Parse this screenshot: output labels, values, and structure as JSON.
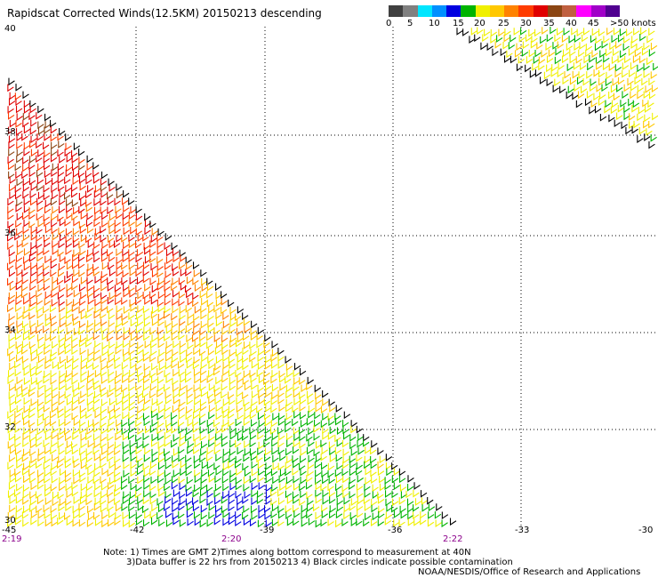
{
  "title": "Rapidscat Corrected Winds(12.5KM) 20150213 descending",
  "colorbar": {
    "colors": [
      "#404040",
      "#808080",
      "#00e6ff",
      "#0090ff",
      "#0000e0",
      "#00b400",
      "#f0f000",
      "#ffc800",
      "#ff8200",
      "#ff3c00",
      "#e00000",
      "#8b4513",
      "#c06040",
      "#ff00ff",
      "#a000c8",
      "#500090"
    ],
    "labels": [
      "0",
      "5",
      "10",
      "15",
      "20",
      "25",
      "30",
      "35",
      "40",
      "45",
      ">50 knots"
    ]
  },
  "lat_labels": [
    "40",
    "38",
    "36",
    "34",
    "32",
    "30"
  ],
  "lon_labels": [
    "-45",
    "-42",
    "-39",
    "-36",
    "-33",
    "-30"
  ],
  "time_labels": [
    "2:19",
    "2:20",
    "2:22"
  ],
  "notes": {
    "line1": "Note: 1) Times are GMT 2)Times along bottom correspond to measurement at 40N",
    "line2": "3)Data buffer is 22 hrs from 20150213 4) Black circles indicate possible contamination",
    "line3": "NOAA/NESDIS/Office of Research and Applications"
  }
}
